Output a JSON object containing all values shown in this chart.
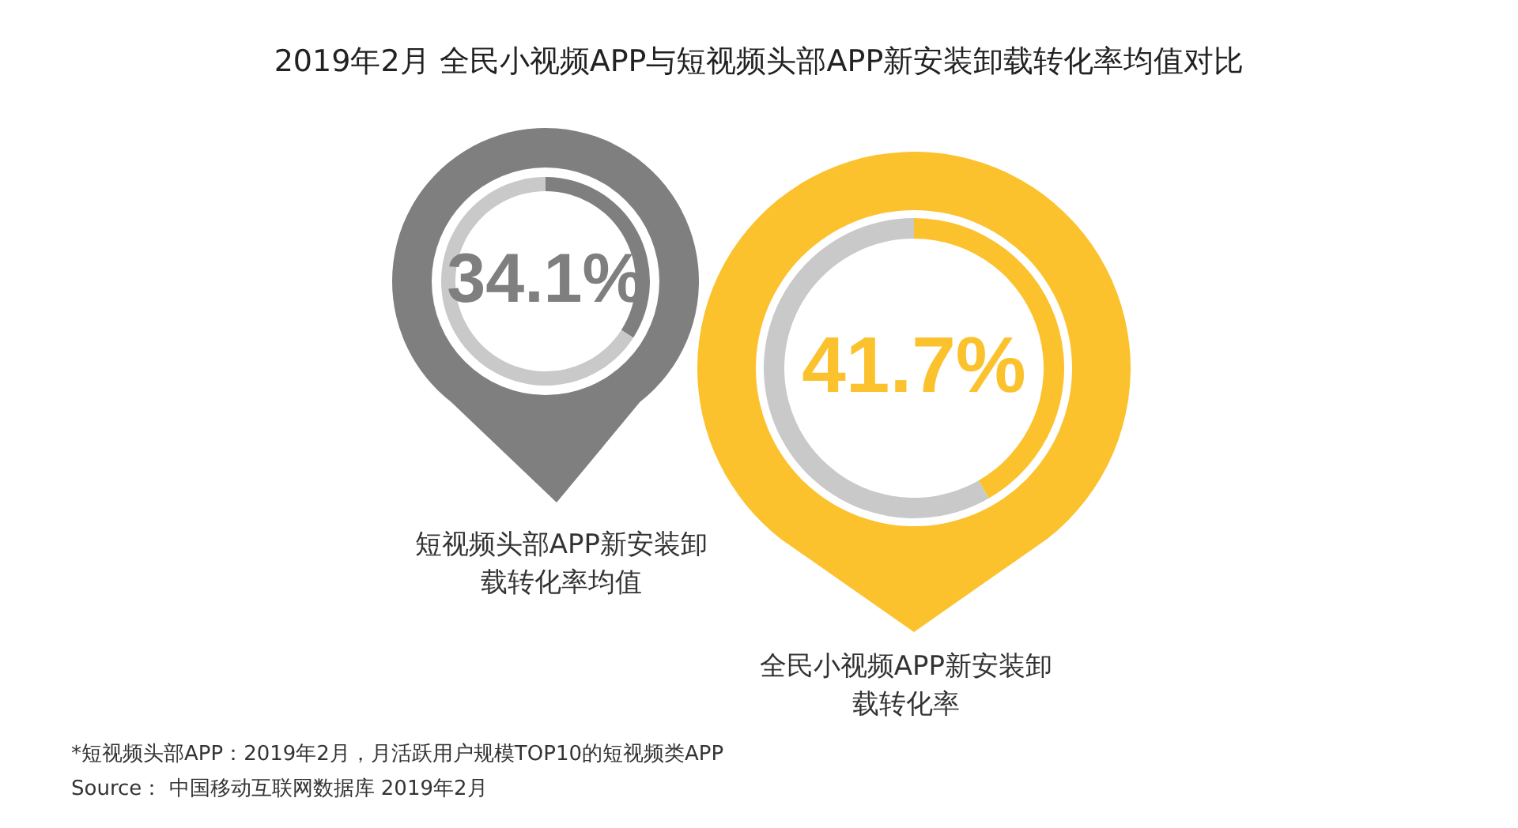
{
  "chart_data": [
    {
      "type": "donut",
      "title": "2019年2月 全民小视频APP与短视频头部APP新安装卸载转化率均值对比",
      "xlabel": "短视频头部APP新安装卸载转化率均值",
      "categories": [
        null,
        null
      ],
      "values": [
        34.1,
        65.9
      ],
      "colors": [
        "#7f7f7f",
        "#c9c9c9"
      ],
      "value_labels": [
        "34.1%",
        null
      ]
    },
    {
      "type": "donut",
      "xlabel": "全民小视频APP新安装卸载转化率",
      "categories": [
        null,
        null
      ],
      "values": [
        41.7,
        58.3
      ],
      "colors": [
        "#fbc22d",
        "#c9c9c9"
      ],
      "value_labels": [
        "41.7%",
        null
      ],
      "annotations": [
        "*短视频头部APP：2019年2月，月活跃用户规模TOP10的短视频类APP",
        "Source： 中国移动互联网数据库 2019年2月"
      ]
    }
  ]
}
